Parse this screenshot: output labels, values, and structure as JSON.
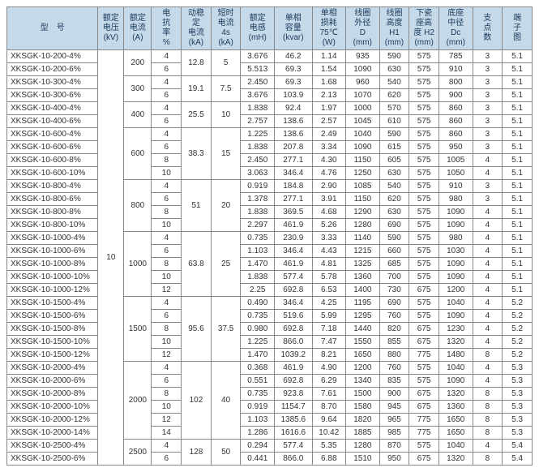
{
  "headers": {
    "model": "型　号",
    "kv_l1": "额定",
    "kv_l2": "电压",
    "kv_l3": "(kV)",
    "a_l1": "额定",
    "a_l2": "电流",
    "a_l3": "(A)",
    "rate_l1": "电",
    "rate_l2": "抗",
    "rate_l3": "率",
    "rate_l4": "%",
    "dyn_l1": "动稳",
    "dyn_l2": "定",
    "dyn_l3": "电流",
    "dyn_l4": "(kA)",
    "short_l1": "短时",
    "short_l2": "电流",
    "short_l3": "4s",
    "short_l4": "(kA)",
    "ind_l1": "额定",
    "ind_l2": "电感",
    "ind_l3": "(mH)",
    "cap_l1": "单相",
    "cap_l2": "容量",
    "cap_l3": "(kvar)",
    "loss_l1": "单相",
    "loss_l2": "损耗",
    "loss_l3": "75℃",
    "loss_l4": "(W)",
    "d_l1": "线圈",
    "d_l2": "外径",
    "d_l3": "D",
    "d_l4": "(mm)",
    "h1_l1": "线圈",
    "h1_l2": "高度",
    "h1_l3": "H1",
    "h1_l4": "(mm)",
    "h2_l1": "下瓷",
    "h2_l2": "座高",
    "h2_l3": "度 H2",
    "h2_l4": "(mm)",
    "dc_l1": "底座",
    "dc_l2": "中径",
    "dc_l3": "Dc",
    "dc_l4": "(mm)",
    "sup_l1": "支",
    "sup_l2": "点",
    "sup_l3": "数",
    "term_l1": "端",
    "term_l2": "子",
    "term_l3": "图"
  },
  "kv_value": "10",
  "groups": [
    {
      "a": "200",
      "rate": "",
      "dyn": "12.8",
      "short": "5",
      "rows": [
        {
          "m": "XKSGK-10-200-4%",
          "r": "4",
          "ind": "3.676",
          "cap": "46.2",
          "loss": "1.14",
          "d": "935",
          "h1": "590",
          "h2": "575",
          "dc": "785",
          "sup": "3",
          "t": "5.1"
        },
        {
          "m": "XKSGK-10-200-6%",
          "r": "6",
          "ind": "5.513",
          "cap": "69.3",
          "loss": "1.54",
          "d": "1090",
          "h1": "630",
          "h2": "575",
          "dc": "910",
          "sup": "3",
          "t": "5.1"
        }
      ]
    },
    {
      "a": "300",
      "rate": "",
      "dyn": "19.1",
      "short": "7.5",
      "rows": [
        {
          "m": "XKSGK-10-300-4%",
          "r": "4",
          "ind": "2.450",
          "cap": "69.3",
          "loss": "1.68",
          "d": "960",
          "h1": "540",
          "h2": "575",
          "dc": "800",
          "sup": "3",
          "t": "5.1"
        },
        {
          "m": "XKSGK-10-300-6%",
          "r": "6",
          "ind": "3.676",
          "cap": "103.9",
          "loss": "2.13",
          "d": "1070",
          "h1": "620",
          "h2": "575",
          "dc": "900",
          "sup": "3",
          "t": "5.1"
        }
      ]
    },
    {
      "a": "400",
      "rate": "",
      "dyn": "25.5",
      "short": "10",
      "rows": [
        {
          "m": "XKSGK-10-400-4%",
          "r": "4",
          "ind": "1.838",
          "cap": "92.4",
          "loss": "1.97",
          "d": "1000",
          "h1": "570",
          "h2": "575",
          "dc": "860",
          "sup": "3",
          "t": "5.1"
        },
        {
          "m": "XKSGK-10-400-6%",
          "r": "6",
          "ind": "2.757",
          "cap": "138.6",
          "loss": "2.57",
          "d": "1045",
          "h1": "610",
          "h2": "575",
          "dc": "860",
          "sup": "3",
          "t": "5.1"
        }
      ]
    },
    {
      "a": "600",
      "rate": "",
      "dyn": "38.3",
      "short": "15",
      "rows": [
        {
          "m": "XKSGK-10-600-4%",
          "r": "4",
          "ind": "1.225",
          "cap": "138.6",
          "loss": "2.49",
          "d": "1040",
          "h1": "590",
          "h2": "575",
          "dc": "860",
          "sup": "3",
          "t": "5.1"
        },
        {
          "m": "XKSGK-10-600-6%",
          "r": "6",
          "ind": "1.838",
          "cap": "207.8",
          "loss": "3.34",
          "d": "1090",
          "h1": "615",
          "h2": "575",
          "dc": "950",
          "sup": "3",
          "t": "5.1"
        },
        {
          "m": "XKSGK-10-600-8%",
          "r": "8",
          "ind": "2.450",
          "cap": "277.1",
          "loss": "4.30",
          "d": "1150",
          "h1": "605",
          "h2": "575",
          "dc": "1005",
          "sup": "4",
          "t": "5.1"
        },
        {
          "m": "XKSGK-10-600-10%",
          "r": "10",
          "ind": "3.063",
          "cap": "346.4",
          "loss": "4.76",
          "d": "1250",
          "h1": "630",
          "h2": "575",
          "dc": "1050",
          "sup": "4",
          "t": "5.1"
        }
      ]
    },
    {
      "a": "800",
      "rate": "",
      "dyn": "51",
      "short": "20",
      "rows": [
        {
          "m": "XKSGK-10-800-4%",
          "r": "4",
          "ind": "0.919",
          "cap": "184.8",
          "loss": "2.90",
          "d": "1085",
          "h1": "540",
          "h2": "575",
          "dc": "910",
          "sup": "3",
          "t": "5.1"
        },
        {
          "m": "XKSGK-10-800-6%",
          "r": "6",
          "ind": "1.378",
          "cap": "277.1",
          "loss": "3.91",
          "d": "1150",
          "h1": "620",
          "h2": "575",
          "dc": "980",
          "sup": "3",
          "t": "5.1"
        },
        {
          "m": "XKSGK-10-800-8%",
          "r": "8",
          "ind": "1.838",
          "cap": "369.5",
          "loss": "4.68",
          "d": "1290",
          "h1": "630",
          "h2": "575",
          "dc": "1090",
          "sup": "4",
          "t": "5.1"
        },
        {
          "m": "XKSGK-10-800-10%",
          "r": "10",
          "ind": "2.297",
          "cap": "461.9",
          "loss": "5.26",
          "d": "1280",
          "h1": "690",
          "h2": "575",
          "dc": "1090",
          "sup": "4",
          "t": "5.1"
        }
      ]
    },
    {
      "a": "1000",
      "rate": "",
      "dyn": "63.8",
      "short": "25",
      "rows": [
        {
          "m": "XKSGK-10-1000-4%",
          "r": "4",
          "ind": "0.735",
          "cap": "230.9",
          "loss": "3.33",
          "d": "1140",
          "h1": "590",
          "h2": "575",
          "dc": "980",
          "sup": "4",
          "t": "5.1"
        },
        {
          "m": "XKSGK-10-1000-6%",
          "r": "6",
          "ind": "1.103",
          "cap": "346.4",
          "loss": "4.43",
          "d": "1215",
          "h1": "660",
          "h2": "575",
          "dc": "1030",
          "sup": "4",
          "t": "5.1"
        },
        {
          "m": "XKSGK-10-1000-8%",
          "r": "8",
          "ind": "1.470",
          "cap": "461.9",
          "loss": "4.81",
          "d": "1325",
          "h1": "685",
          "h2": "575",
          "dc": "1090",
          "sup": "4",
          "t": "5.1"
        },
        {
          "m": "XKSGK-10-1000-10%",
          "r": "10",
          "ind": "1.838",
          "cap": "577.4",
          "loss": "5.78",
          "d": "1360",
          "h1": "700",
          "h2": "575",
          "dc": "1090",
          "sup": "4",
          "t": "5.1"
        },
        {
          "m": "XKSGK-10-1000-12%",
          "r": "12",
          "ind": "2.25",
          "cap": "692.8",
          "loss": "6.53",
          "d": "1400",
          "h1": "730",
          "h2": "675",
          "dc": "1200",
          "sup": "4",
          "t": "5.1"
        }
      ]
    },
    {
      "a": "1500",
      "rate": "",
      "dyn": "95.6",
      "short": "37.5",
      "rows": [
        {
          "m": "XKSGK-10-1500-4%",
          "r": "4",
          "ind": "0.490",
          "cap": "346.4",
          "loss": "4.25",
          "d": "1195",
          "h1": "690",
          "h2": "575",
          "dc": "1040",
          "sup": "4",
          "t": "5.2"
        },
        {
          "m": "XKSGK-10-1500-6%",
          "r": "6",
          "ind": "0.735",
          "cap": "519.6",
          "loss": "5.99",
          "d": "1295",
          "h1": "760",
          "h2": "575",
          "dc": "1090",
          "sup": "4",
          "t": "5.2"
        },
        {
          "m": "XKSGK-10-1500-8%",
          "r": "8",
          "ind": "0.980",
          "cap": "692.8",
          "loss": "7.18",
          "d": "1440",
          "h1": "820",
          "h2": "675",
          "dc": "1230",
          "sup": "4",
          "t": "5.2"
        },
        {
          "m": "XKSGK-10-1500-10%",
          "r": "10",
          "ind": "1.225",
          "cap": "866.0",
          "loss": "7.47",
          "d": "1550",
          "h1": "855",
          "h2": "675",
          "dc": "1320",
          "sup": "4",
          "t": "5.2"
        },
        {
          "m": "XKSGK-10-1500-12%",
          "r": "12",
          "ind": "1.470",
          "cap": "1039.2",
          "loss": "8.21",
          "d": "1650",
          "h1": "880",
          "h2": "775",
          "dc": "1480",
          "sup": "8",
          "t": "5.2"
        }
      ]
    },
    {
      "a": "2000",
      "rate": "",
      "dyn": "102",
      "short": "40",
      "rows": [
        {
          "m": "XKSGK-10-2000-4%",
          "r": "4",
          "ind": "0.368",
          "cap": "461.9",
          "loss": "4.90",
          "d": "1200",
          "h1": "760",
          "h2": "575",
          "dc": "1040",
          "sup": "4",
          "t": "5.3"
        },
        {
          "m": "XKSGK-10-2000-6%",
          "r": "6",
          "ind": "0.551",
          "cap": "692.8",
          "loss": "6.29",
          "d": "1340",
          "h1": "835",
          "h2": "575",
          "dc": "1090",
          "sup": "4",
          "t": "5.3"
        },
        {
          "m": "XKSGK-10-2000-8%",
          "r": "8",
          "ind": "0.735",
          "cap": "923.8",
          "loss": "7.61",
          "d": "1500",
          "h1": "900",
          "h2": "675",
          "dc": "1320",
          "sup": "8",
          "t": "5.3"
        },
        {
          "m": "XKSGK-10-2000-10%",
          "r": "10",
          "ind": "0.919",
          "cap": "1154.7",
          "loss": "8.70",
          "d": "1580",
          "h1": "945",
          "h2": "675",
          "dc": "1360",
          "sup": "8",
          "t": "5.3"
        },
        {
          "m": "XKSGK-10-2000-12%",
          "r": "12",
          "ind": "1.103",
          "cap": "1385.6",
          "loss": "9.64",
          "d": "1820",
          "h1": "965",
          "h2": "775",
          "dc": "1650",
          "sup": "8",
          "t": "5.3"
        },
        {
          "m": "XKSGK-10-2000-14%",
          "r": "14",
          "ind": "1.286",
          "cap": "1616.6",
          "loss": "10.42",
          "d": "1885",
          "h1": "985",
          "h2": "775",
          "dc": "1650",
          "sup": "8",
          "t": "5.3"
        }
      ]
    },
    {
      "a": "2500",
      "rate": "",
      "dyn": "128",
      "short": "50",
      "rows": [
        {
          "m": "XKSGK-10-2500-4%",
          "r": "4",
          "ind": "0.294",
          "cap": "577.4",
          "loss": "5.35",
          "d": "1280",
          "h1": "870",
          "h2": "575",
          "dc": "1040",
          "sup": "4",
          "t": "5.4"
        },
        {
          "m": "XKSGK-10-2500-6%",
          "r": "6",
          "ind": "0.441",
          "cap": "866.0",
          "loss": "6.88",
          "d": "1510",
          "h1": "950",
          "h2": "675",
          "dc": "1320",
          "sup": "8",
          "t": "5.4"
        }
      ]
    }
  ]
}
